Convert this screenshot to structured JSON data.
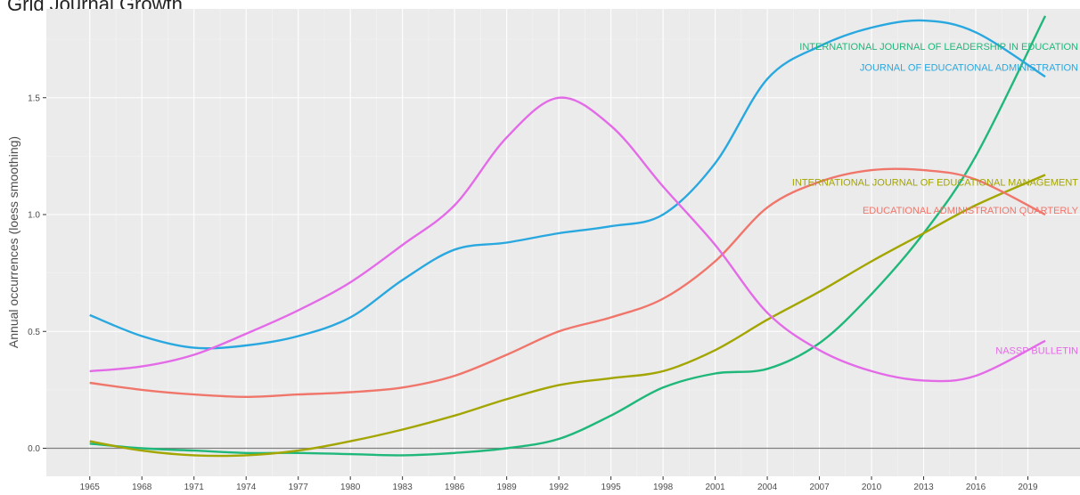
{
  "caption": "Grid Journal Growth",
  "chart_data": {
    "type": "line",
    "title": "",
    "xlabel": "",
    "ylabel": "Annual occurrences (loess smoothing)",
    "xlim": [
      1962.5,
      2022
    ],
    "ylim": [
      -0.12,
      1.88
    ],
    "x_ticks": [
      1965,
      1968,
      1971,
      1974,
      1977,
      1980,
      1983,
      1986,
      1989,
      1992,
      1995,
      1998,
      2001,
      2004,
      2007,
      2010,
      2013,
      2016,
      2019
    ],
    "y_ticks": [
      0.0,
      0.5,
      1.0,
      1.5
    ],
    "y_tick_labels": [
      "0.0",
      "0.5",
      "1.0",
      "1.5"
    ],
    "grid": true,
    "legend": "direct labels at right end of lines",
    "reference_line_y": 0,
    "series": [
      {
        "name": "INTERNATIONAL JOURNAL OF LEADERSHIP IN EDUCATION",
        "color": "#1fb87a",
        "x": [
          1965,
          1968,
          1971,
          1974,
          1977,
          1980,
          1983,
          1986,
          1989,
          1992,
          1995,
          1998,
          2001,
          2004,
          2007,
          2010,
          2013,
          2016,
          2020
        ],
        "y": [
          0.02,
          0.0,
          -0.01,
          -0.02,
          -0.02,
          -0.025,
          -0.03,
          -0.02,
          0.0,
          0.04,
          0.14,
          0.26,
          0.32,
          0.34,
          0.45,
          0.66,
          0.92,
          1.25,
          1.85
        ]
      },
      {
        "name": "JOURNAL OF EDUCATIONAL ADMINISTRATION",
        "color": "#29a8e0",
        "x": [
          1965,
          1968,
          1971,
          1974,
          1977,
          1980,
          1983,
          1986,
          1989,
          1992,
          1995,
          1998,
          2001,
          2004,
          2007,
          2010,
          2013,
          2016,
          2020
        ],
        "y": [
          0.57,
          0.48,
          0.43,
          0.44,
          0.48,
          0.56,
          0.72,
          0.85,
          0.88,
          0.92,
          0.95,
          1.0,
          1.22,
          1.58,
          1.72,
          1.8,
          1.83,
          1.78,
          1.59
        ]
      },
      {
        "name": "INTERNATIONAL JOURNAL OF EDUCATIONAL MANAGEMENT",
        "color": "#a3a500",
        "x": [
          1965,
          1968,
          1971,
          1974,
          1977,
          1980,
          1983,
          1986,
          1989,
          1992,
          1995,
          1998,
          2001,
          2004,
          2007,
          2010,
          2013,
          2016,
          2020
        ],
        "y": [
          0.03,
          -0.01,
          -0.03,
          -0.03,
          -0.01,
          0.03,
          0.08,
          0.14,
          0.21,
          0.27,
          0.3,
          0.33,
          0.42,
          0.55,
          0.67,
          0.8,
          0.92,
          1.04,
          1.17
        ]
      },
      {
        "name": "EDUCATIONAL ADMINISTRATION QUARTERLY",
        "color": "#f0766b",
        "x": [
          1965,
          1968,
          1971,
          1974,
          1977,
          1980,
          1983,
          1986,
          1989,
          1992,
          1995,
          1998,
          2001,
          2004,
          2007,
          2010,
          2013,
          2016,
          2020
        ],
        "y": [
          0.28,
          0.25,
          0.23,
          0.22,
          0.23,
          0.24,
          0.26,
          0.31,
          0.4,
          0.5,
          0.56,
          0.64,
          0.8,
          1.03,
          1.14,
          1.19,
          1.19,
          1.15,
          1.0
        ]
      },
      {
        "name": "NASSP BULLETIN",
        "color": "#e46be8",
        "x": [
          1965,
          1968,
          1971,
          1974,
          1977,
          1980,
          1983,
          1986,
          1989,
          1992,
          1995,
          1998,
          2001,
          2004,
          2007,
          2010,
          2013,
          2016,
          2020
        ],
        "y": [
          0.33,
          0.35,
          0.4,
          0.49,
          0.59,
          0.71,
          0.87,
          1.04,
          1.33,
          1.5,
          1.38,
          1.12,
          0.87,
          0.58,
          0.42,
          0.33,
          0.29,
          0.31,
          0.46
        ]
      }
    ]
  }
}
